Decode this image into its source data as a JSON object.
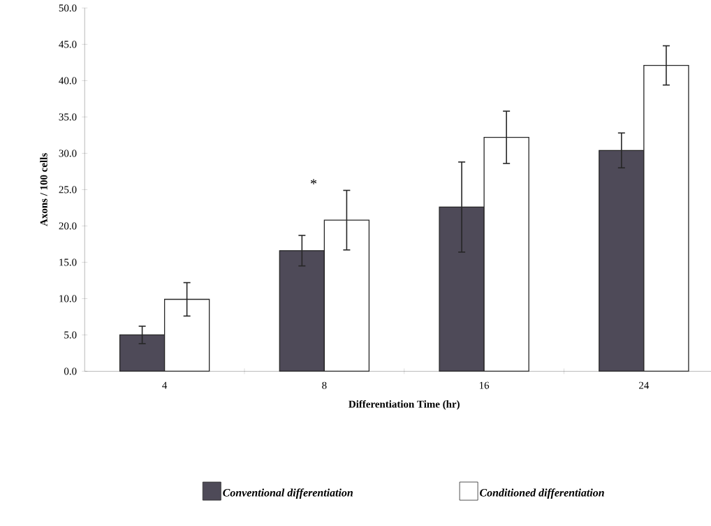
{
  "chart_data": {
    "type": "bar",
    "xlabel": "Differentiation Time (hr)",
    "ylabel": "Axons / 100 cells",
    "categories": [
      "4",
      "8",
      "16",
      "24"
    ],
    "series": [
      {
        "name": "Conventional differentiation",
        "color": "#4e4a58",
        "values": [
          5.0,
          16.6,
          22.6,
          30.4
        ],
        "errors": [
          1.2,
          2.1,
          6.2,
          2.4
        ]
      },
      {
        "name": "Conditioned differentiation",
        "color": "#ffffff",
        "values": [
          9.9,
          20.8,
          32.2,
          42.1
        ],
        "errors": [
          2.3,
          4.1,
          3.6,
          2.7
        ]
      }
    ],
    "ylim": [
      0,
      50
    ],
    "yticks": [
      {
        "value": 0,
        "label": "0.0"
      },
      {
        "value": 5,
        "label": "5.0"
      },
      {
        "value": 10,
        "label": "10.0"
      },
      {
        "value": 15,
        "label": "15.0"
      },
      {
        "value": 20,
        "label": "20.0"
      },
      {
        "value": 25,
        "label": "25.0"
      },
      {
        "value": 30,
        "label": "30.0"
      },
      {
        "value": 35,
        "label": "35.0"
      },
      {
        "value": 40,
        "label": "40.0"
      },
      {
        "value": 45,
        "label": "45.0"
      },
      {
        "value": 50,
        "label": "50.0"
      }
    ],
    "annotations": [
      "*"
    ],
    "legend": "bottom",
    "grid": false
  }
}
